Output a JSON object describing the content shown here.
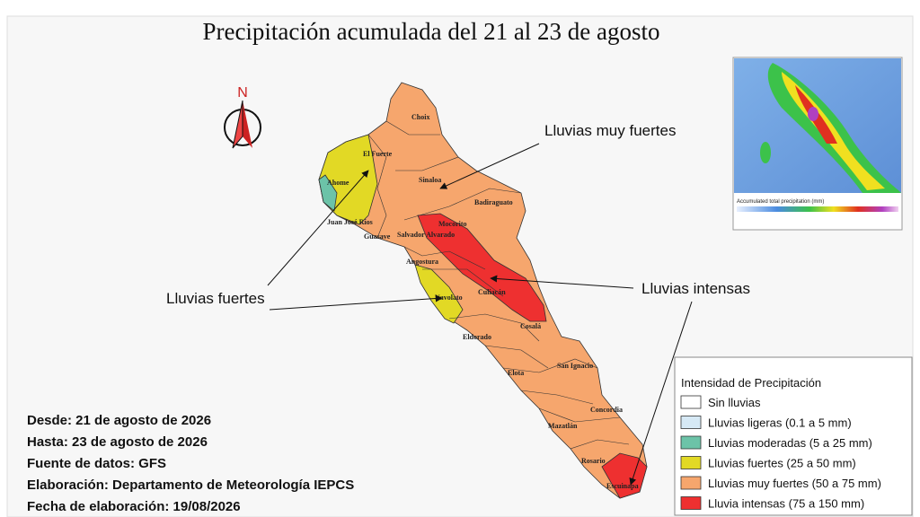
{
  "title": "Precipitación acumulada del 21 al 23 de agosto",
  "north": "N",
  "municipalities": [
    "Choix",
    "El Fuerte",
    "Ahome",
    "Sinaloa",
    "Badiraguato",
    "Juan José Ríos",
    "Guasave",
    "Salvador Alvarado",
    "Mocorito",
    "Angostura",
    "Navolato",
    "Culiacán",
    "Eldorado",
    "Cosalá",
    "Elota",
    "San Ignacio",
    "Concordia",
    "Mazatlán",
    "Rosario",
    "Escuinapa"
  ],
  "annotations": [
    "Lluvias muy fuertes",
    "Lluvias fuertes",
    "Lluvias intensas"
  ],
  "legend": {
    "title": "Intensidad de Precipitación",
    "items": [
      {
        "label": "Sin lluvias",
        "color": "#ffffff"
      },
      {
        "label": "Lluvias ligeras (0.1 a 5 mm)",
        "color": "#d6e9f5"
      },
      {
        "label": "Lluvias moderadas (5 a 25 mm)",
        "color": "#6cc3a8"
      },
      {
        "label": "Lluvias fuertes (25 a 50 mm)",
        "color": "#e2d925"
      },
      {
        "label": "Lluvias muy fuertes (50 a 75 mm)",
        "color": "#f6a66d"
      },
      {
        "label": "Lluvia intensas (75 a 150 mm)",
        "color": "#ee3030"
      }
    ]
  },
  "info": [
    "Desde: 21 de agosto de 2026",
    "Hasta: 23 de agosto de 2026",
    "Fuente de datos: GFS",
    "Elaboración: Departamento de Meteorología IEPCS",
    "Fecha de elaboración: 19/08/2026"
  ],
  "inset": {
    "caption": "Accumulated total precipitation (mm)"
  }
}
